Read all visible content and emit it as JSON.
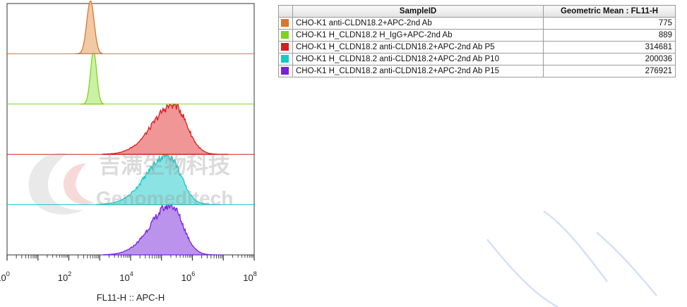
{
  "chart_data": {
    "type": "histogram-overlay",
    "xlabel": "FL11-H :: APC-H",
    "x_scale": "log",
    "xlim": [
      1,
      100000000
    ],
    "x_ticks": [
      {
        "base": "10",
        "exp": "0"
      },
      {
        "base": "10",
        "exp": "2"
      },
      {
        "base": "10",
        "exp": "4"
      },
      {
        "base": "10",
        "exp": "6"
      },
      {
        "base": "10",
        "exp": "8"
      }
    ],
    "series": [
      {
        "name": "CHO-K1 anti-CLDN18.2+APC-2nd Ab",
        "color": "#d9762a",
        "fill": "#f0c39a",
        "peak_log10": 2.7,
        "sigma_log10": 0.12
      },
      {
        "name": "CHO-K1 H_CLDN18.2 H_IgG+APC-2nd Ab",
        "color": "#7ed321",
        "fill": "#c5ef9a",
        "peak_log10": 2.8,
        "sigma_log10": 0.1
      },
      {
        "name": "CHO-K1 H_CLDN18.2 anti-CLDN18.2+APC-2nd Ab P5",
        "color": "#d91e1e",
        "fill": "#ee8b8b",
        "peak_log10": 5.4,
        "sigma_log10": 0.55
      },
      {
        "name": "CHO-K1 H_CLDN18.2 anti-CLDN18.2+APC-2nd Ab P10",
        "color": "#19c8c8",
        "fill": "#7fe0e0",
        "peak_log10": 5.2,
        "sigma_log10": 0.55
      },
      {
        "name": "CHO-K1 H_CLDN18.2 anti-CLDN18.2+APC-2nd Ab P15",
        "color": "#7a22d9",
        "fill": "#b487ea",
        "peak_log10": 5.3,
        "sigma_log10": 0.52
      }
    ]
  },
  "table": {
    "header_sample": "SampleID",
    "header_metric": "Geometric Mean : FL11-H",
    "rows": [
      {
        "color": "#d9762a",
        "sample": "CHO-K1 anti-CLDN18.2+APC-2nd Ab",
        "value": "775"
      },
      {
        "color": "#7ed321",
        "sample": "CHO-K1 H_CLDN18.2 H_IgG+APC-2nd Ab",
        "value": "889"
      },
      {
        "color": "#d91e1e",
        "sample": "CHO-K1 H_CLDN18.2 anti-CLDN18.2+APC-2nd Ab P5",
        "value": "314681"
      },
      {
        "color": "#19c8c8",
        "sample": "CHO-K1 H_CLDN18.2 anti-CLDN18.2+APC-2nd Ab P10",
        "value": "200036"
      },
      {
        "color": "#7a22d9",
        "sample": "CHO-K1 H_CLDN18.2 anti-CLDN18.2+APC-2nd Ab P15",
        "value": "276921"
      }
    ]
  },
  "watermark": {
    "chinese": "吉满生物科技",
    "english": "Genomeditech"
  }
}
